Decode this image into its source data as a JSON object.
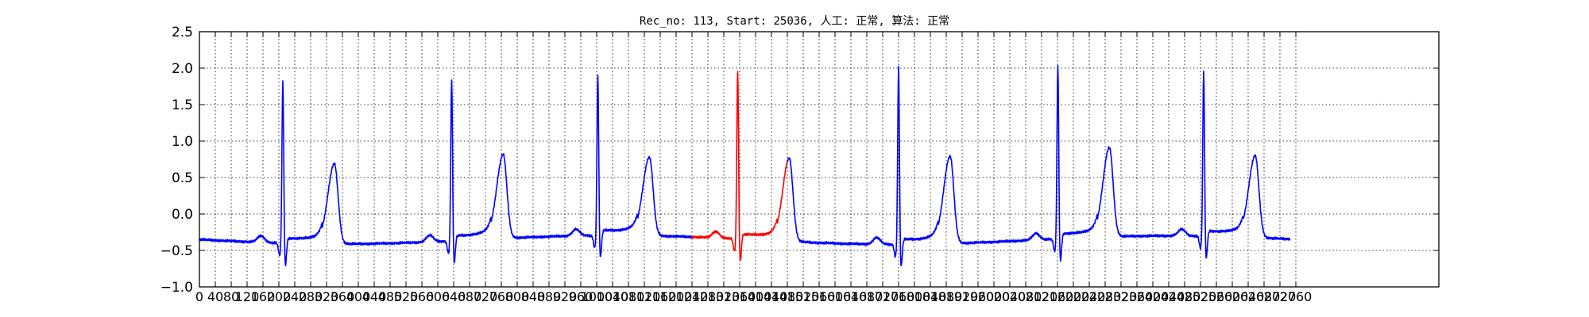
{
  "chart_data": {
    "type": "line",
    "title": "Rec_no: 113, Start: 25036, 人工: 正常, 算法: 正常",
    "xlabel": "",
    "ylabel": "",
    "xlim": [
      0,
      3120
    ],
    "ylim": [
      -1.0,
      2.5
    ],
    "y_ticks": [
      "−1.0",
      "−0.5",
      "0.0",
      "0.5",
      "1.0",
      "1.5",
      "2.0",
      "2.5"
    ],
    "x_tick_step": 40,
    "x_tick_max": 2760,
    "grid": true,
    "series": [
      {
        "color": "#0000ff",
        "highlight_color": "#ff0000",
        "highlight_range": [
          1240,
          1480
        ],
        "beat_positions": [
          210,
          635,
          1003,
          1355,
          1760,
          2161,
          2528
        ],
        "r_peaks": [
          1.88,
          1.9,
          1.95,
          2.02,
          2.06,
          2.1,
          2.02
        ],
        "t_peaks": [
          0.72,
          0.8,
          0.8,
          0.82,
          0.8,
          0.9,
          0.84
        ],
        "baseline_start": -0.35,
        "baseline_end": -0.36,
        "x_end": 2745
      }
    ]
  }
}
